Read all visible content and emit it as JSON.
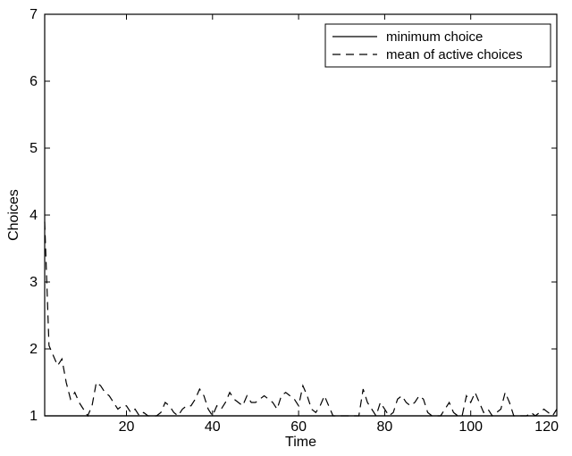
{
  "chart_data": {
    "type": "line",
    "title": "",
    "xlabel": "Time",
    "ylabel": "Choices",
    "xlim": [
      1,
      120
    ],
    "ylim": [
      1,
      7
    ],
    "x_ticks": [
      20,
      40,
      60,
      80,
      100,
      120
    ],
    "y_ticks": [
      1,
      2,
      3,
      4,
      5,
      6,
      7
    ],
    "grid": false,
    "legend_position": "top-right",
    "legend": [
      {
        "label": "minimum choice",
        "style": "solid"
      },
      {
        "label": "mean of active choices",
        "style": "dashed"
      }
    ],
    "series": [
      {
        "name": "minimum choice",
        "style": "solid",
        "color": "#000000",
        "x": [
          1,
          120
        ],
        "values": [
          1,
          1
        ]
      },
      {
        "name": "mean of active choices",
        "style": "dashed",
        "color": "#000000",
        "x": [
          1,
          2,
          3,
          4,
          5,
          6,
          7,
          8,
          9,
          10,
          11,
          12,
          13,
          14,
          15,
          16,
          17,
          18,
          19,
          20,
          21,
          22,
          23,
          24,
          25,
          26,
          27,
          28,
          29,
          30,
          31,
          32,
          33,
          34,
          35,
          36,
          37,
          38,
          39,
          40,
          41,
          42,
          43,
          44,
          45,
          46,
          47,
          48,
          49,
          50,
          51,
          52,
          53,
          54,
          55,
          56,
          57,
          58,
          59,
          60,
          61,
          62,
          63,
          64,
          65,
          66,
          67,
          68,
          69,
          70,
          71,
          72,
          73,
          74,
          75,
          76,
          77,
          78,
          79,
          80,
          81,
          82,
          83,
          84,
          85,
          86,
          87,
          88,
          89,
          90,
          91,
          92,
          93,
          94,
          95,
          96,
          97,
          98,
          99,
          100,
          101,
          102,
          103,
          104,
          105,
          106,
          107,
          108,
          109,
          110,
          111,
          112,
          113,
          114,
          115,
          116,
          117,
          118,
          119,
          120
        ],
        "values": [
          3.9,
          2.05,
          1.9,
          1.75,
          1.85,
          1.5,
          1.25,
          1.35,
          1.2,
          1.1,
          1.0,
          1.15,
          1.5,
          1.45,
          1.35,
          1.3,
          1.2,
          1.1,
          1.15,
          1.15,
          1.05,
          1.1,
          1.0,
          1.05,
          1.0,
          1.0,
          1.0,
          1.05,
          1.2,
          1.15,
          1.05,
          1.0,
          1.1,
          1.15,
          1.15,
          1.25,
          1.4,
          1.3,
          1.1,
          1.0,
          1.15,
          1.1,
          1.2,
          1.35,
          1.25,
          1.2,
          1.15,
          1.3,
          1.2,
          1.2,
          1.25,
          1.3,
          1.25,
          1.2,
          1.1,
          1.3,
          1.35,
          1.3,
          1.25,
          1.15,
          1.45,
          1.3,
          1.1,
          1.05,
          1.15,
          1.3,
          1.15,
          1.0,
          1.0,
          1.0,
          1.0,
          1.0,
          1.0,
          1.0,
          1.4,
          1.2,
          1.1,
          1.0,
          1.2,
          1.1,
          1.0,
          1.05,
          1.25,
          1.3,
          1.2,
          1.15,
          1.2,
          1.3,
          1.25,
          1.05,
          1.0,
          1.0,
          1.0,
          1.1,
          1.2,
          1.05,
          1.0,
          1.0,
          1.3,
          1.2,
          1.35,
          1.2,
          1.05,
          1.1,
          1.0,
          1.05,
          1.1,
          1.35,
          1.2,
          1.0,
          1.0,
          1.0,
          1.0,
          1.05,
          1.0,
          1.05,
          1.1,
          1.05,
          1.0,
          1.1
        ]
      }
    ]
  }
}
